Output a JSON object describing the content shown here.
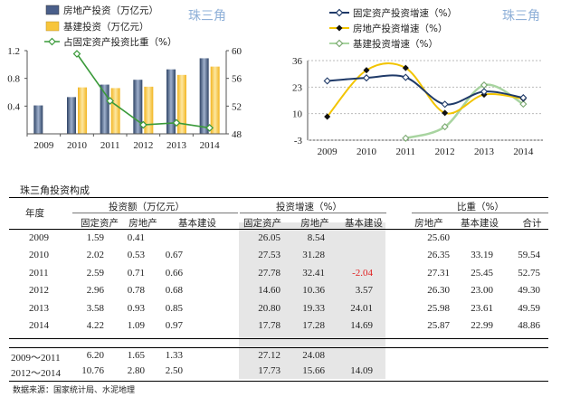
{
  "left_chart": {
    "watermark": "珠三角",
    "chart_data": {
      "type": "bar",
      "categories": [
        "2009",
        "2010",
        "2011",
        "2012",
        "2013",
        "2014"
      ],
      "series": [
        {
          "name": "房地产投资（万亿元）",
          "type": "bar",
          "axis": "left",
          "values": [
            0.41,
            0.53,
            0.71,
            0.78,
            0.93,
            1.09
          ],
          "color": "#4a5f8a"
        },
        {
          "name": "基建投资（万亿元）",
          "type": "bar",
          "axis": "left",
          "values": [
            null,
            0.67,
            0.66,
            0.68,
            0.85,
            0.97
          ],
          "color": "#f7c53a"
        },
        {
          "name": "占固定资产投资比重（%）",
          "type": "line",
          "axis": "right",
          "values": [
            null,
            59.54,
            52.75,
            49.3,
            49.59,
            48.86
          ],
          "color": "#3a9a3a"
        }
      ],
      "y_left": {
        "ticks": [
          "0.4",
          "0.8",
          "1.2"
        ],
        "range": [
          0,
          1.2
        ]
      },
      "y_right": {
        "ticks": [
          "48",
          "52",
          "56",
          "60"
        ],
        "range": [
          48,
          60
        ]
      }
    }
  },
  "right_chart": {
    "watermark": "珠三角",
    "chart_data": {
      "type": "line",
      "categories": [
        "2009",
        "2010",
        "2011",
        "2012",
        "2013",
        "2014"
      ],
      "series": [
        {
          "name": "固定资产投资增速（%）",
          "values": [
            26.05,
            27.53,
            27.78,
            14.6,
            20.8,
            17.78
          ],
          "color": "#1f3a68"
        },
        {
          "name": "房地产投资增速（%）",
          "values": [
            8.54,
            31.28,
            32.41,
            10.36,
            19.33,
            17.28
          ],
          "color": "#f2c400"
        },
        {
          "name": "基建投资增速（%）",
          "values": [
            null,
            null,
            -2.04,
            3.57,
            24.01,
            14.69
          ],
          "color": "#a8d4a0"
        }
      ],
      "y": {
        "ticks": [
          "-3",
          "10",
          "23",
          "36"
        ],
        "range": [
          -3,
          36
        ]
      }
    }
  },
  "table": {
    "title": "珠三角投资构成",
    "year_label": "年度",
    "group_amount": "投资额（万亿元）",
    "group_growth": "投资增速（%）",
    "group_share": "比重（%）",
    "sub_headers": [
      "固定资产",
      "房地产",
      "基本建设",
      "固定资产",
      "房地产",
      "基本建设",
      "房地产",
      "基本建设",
      "合计"
    ],
    "rows": [
      [
        "2009",
        "1.59",
        "0.41",
        "",
        "26.05",
        "8.54",
        "",
        "25.60",
        "",
        ""
      ],
      [
        "2010",
        "2.02",
        "0.53",
        "0.67",
        "27.53",
        "31.28",
        "",
        "26.35",
        "33.19",
        "59.54"
      ],
      [
        "2011",
        "2.59",
        "0.71",
        "0.66",
        "27.78",
        "32.41",
        "-2.04",
        "27.31",
        "25.45",
        "52.75"
      ],
      [
        "2012",
        "2.96",
        "0.78",
        "0.68",
        "14.60",
        "10.36",
        "3.57",
        "26.30",
        "23.00",
        "49.30"
      ],
      [
        "2013",
        "3.58",
        "0.93",
        "0.85",
        "20.80",
        "19.33",
        "24.01",
        "25.98",
        "23.61",
        "49.59"
      ],
      [
        "2014",
        "4.22",
        "1.09",
        "0.97",
        "17.78",
        "17.28",
        "14.69",
        "25.87",
        "22.99",
        "48.86"
      ]
    ],
    "summary_rows": [
      [
        "2009～2011",
        "6.20",
        "1.65",
        "1.33",
        "27.12",
        "24.08",
        "",
        "",
        "",
        ""
      ],
      [
        "2012～2014",
        "10.76",
        "2.80",
        "2.50",
        "17.73",
        "15.66",
        "14.09",
        "",
        "",
        ""
      ]
    ],
    "negative_color": "#e02020",
    "source": "数据来源：国家统计局、水泥地理"
  }
}
